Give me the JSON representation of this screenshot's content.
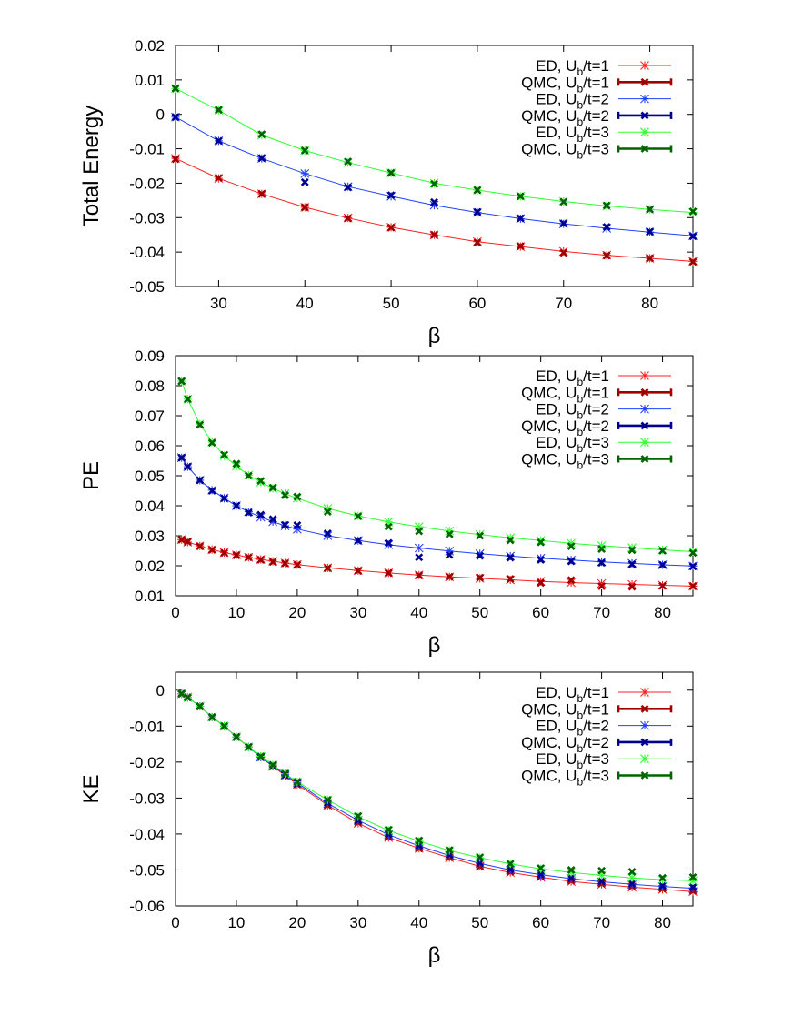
{
  "colors": {
    "ed_1": "#ff2020",
    "qmc_1": "#a00000",
    "ed_2": "#2040ff",
    "qmc_2": "#000090",
    "ed_3": "#30ff30",
    "qmc_3": "#006400"
  },
  "legend": [
    "ED, U_b/t=1",
    "QMC, U_b/t=1",
    "ED, U_b/t=2",
    "QMC, U_b/t=2",
    "ED, U_b/t=3",
    "QMC, U_b/t=3"
  ],
  "chart_data": [
    {
      "type": "line",
      "ylabel": "Total Energy",
      "xlabel": "β",
      "xlim": [
        25,
        85
      ],
      "ylim": [
        -0.05,
        0.02
      ],
      "xticks": [
        30,
        40,
        50,
        60,
        70,
        80
      ],
      "yticks": [
        0.02,
        0.01,
        0,
        -0.01,
        -0.02,
        -0.03,
        -0.04,
        -0.05
      ],
      "ytick_labels": [
        "0.02",
        "0.01",
        "0",
        "-0.01",
        "-0.02",
        "-0.03",
        "-0.04",
        "-0.05"
      ],
      "legend_position": "top-right",
      "series": [
        {
          "name": "ED, U_b/t=1",
          "kind": "ed",
          "x": [
            25,
            30,
            35,
            40,
            45,
            50,
            55,
            60,
            65,
            70,
            75,
            80,
            85
          ],
          "y": [
            -0.0128,
            -0.0186,
            -0.0231,
            -0.027,
            -0.0301,
            -0.0328,
            -0.035,
            -0.037,
            -0.0384,
            -0.0398,
            -0.0409,
            -0.0418,
            -0.0427
          ]
        },
        {
          "name": "QMC, U_b/t=1",
          "kind": "qmc",
          "x": [
            25,
            30,
            35,
            40,
            45,
            50,
            55,
            60,
            65,
            70,
            75,
            80,
            85
          ],
          "y": [
            -0.013,
            -0.0185,
            -0.0231,
            -0.027,
            -0.0302,
            -0.0329,
            -0.035,
            -0.0372,
            -0.0383,
            -0.0402,
            -0.041,
            -0.0418,
            -0.0428
          ]
        },
        {
          "name": "ED, U_b/t=2",
          "kind": "ed",
          "x": [
            25,
            30,
            35,
            40,
            45,
            50,
            55,
            60,
            65,
            70,
            75,
            80,
            85
          ],
          "y": [
            -0.0008,
            -0.0077,
            -0.0128,
            -0.0172,
            -0.021,
            -0.0238,
            -0.0264,
            -0.0285,
            -0.0303,
            -0.0318,
            -0.0331,
            -0.0342,
            -0.0353
          ]
        },
        {
          "name": "QMC, U_b/t=2",
          "kind": "qmc",
          "x": [
            25,
            30,
            35,
            40,
            45,
            50,
            55,
            60,
            65,
            70,
            75,
            80,
            85
          ],
          "y": [
            -0.0008,
            -0.0077,
            -0.0127,
            -0.0197,
            -0.0212,
            -0.0235,
            -0.0255,
            -0.0284,
            -0.0302,
            -0.0317,
            -0.0327,
            -0.0341,
            -0.0354
          ]
        },
        {
          "name": "ED, U_b/t=3",
          "kind": "ed",
          "x": [
            25,
            30,
            35,
            40,
            45,
            50,
            55,
            60,
            65,
            70,
            75,
            80,
            85
          ],
          "y": [
            0.0075,
            0.0012,
            -0.006,
            -0.0105,
            -0.014,
            -0.017,
            -0.02,
            -0.022,
            -0.0238,
            -0.0253,
            -0.0266,
            -0.0276,
            -0.0285
          ]
        },
        {
          "name": "QMC, U_b/t=3",
          "kind": "qmc",
          "x": [
            25,
            30,
            35,
            40,
            45,
            50,
            55,
            60,
            65,
            70,
            75,
            80,
            85
          ],
          "y": [
            0.0075,
            0.0013,
            -0.0058,
            -0.0105,
            -0.0137,
            -0.017,
            -0.0202,
            -0.022,
            -0.0238,
            -0.0254,
            -0.0265,
            -0.0276,
            -0.0282
          ]
        }
      ]
    },
    {
      "type": "line",
      "ylabel": "PE",
      "xlabel": "β",
      "xlim": [
        0,
        85
      ],
      "ylim": [
        0.01,
        0.09
      ],
      "xticks": [
        0,
        10,
        20,
        30,
        40,
        50,
        60,
        70,
        80
      ],
      "yticks": [
        0.09,
        0.08,
        0.07,
        0.06,
        0.05,
        0.04,
        0.03,
        0.02,
        0.01
      ],
      "ytick_labels": [
        "0.09",
        "0.08",
        "0.07",
        "0.06",
        "0.05",
        "0.04",
        "0.03",
        "0.02",
        "0.01"
      ],
      "legend_position": "top-right",
      "series": [
        {
          "name": "ED, U_b/t=1",
          "kind": "ed",
          "x": [
            1,
            2,
            4,
            6,
            8,
            10,
            12,
            14,
            16,
            18,
            20,
            25,
            30,
            35,
            40,
            45,
            50,
            55,
            60,
            65,
            70,
            75,
            80,
            85
          ],
          "y": [
            0.0287,
            0.0279,
            0.0266,
            0.0254,
            0.0244,
            0.0236,
            0.0228,
            0.0221,
            0.0215,
            0.0209,
            0.0204,
            0.0193,
            0.0184,
            0.0176,
            0.0169,
            0.0163,
            0.0158,
            0.0153,
            0.0148,
            0.0144,
            0.0141,
            0.0138,
            0.0135,
            0.0132
          ]
        },
        {
          "name": "QMC, U_b/t=1",
          "kind": "qmc",
          "x": [
            1,
            2,
            4,
            6,
            8,
            10,
            12,
            14,
            16,
            18,
            20,
            25,
            30,
            35,
            40,
            45,
            50,
            55,
            60,
            65,
            70,
            75,
            80,
            85
          ],
          "y": [
            0.0287,
            0.028,
            0.0265,
            0.0253,
            0.0243,
            0.0235,
            0.0228,
            0.022,
            0.0213,
            0.0208,
            0.0203,
            0.0192,
            0.0183,
            0.0176,
            0.0168,
            0.0163,
            0.016,
            0.0156,
            0.0143,
            0.0152,
            0.0132,
            0.013,
            0.0133,
            0.0132
          ]
        },
        {
          "name": "ED, U_b/t=2",
          "kind": "ed",
          "x": [
            1,
            2,
            4,
            6,
            8,
            10,
            12,
            14,
            16,
            18,
            20,
            25,
            30,
            35,
            40,
            45,
            50,
            55,
            60,
            65,
            70,
            75,
            80,
            85
          ],
          "y": [
            0.056,
            0.053,
            0.0485,
            0.0452,
            0.0425,
            0.04,
            0.038,
            0.0362,
            0.0347,
            0.0333,
            0.0322,
            0.03,
            0.0284,
            0.027,
            0.0259,
            0.0249,
            0.024,
            0.0232,
            0.0225,
            0.0219,
            0.0213,
            0.0208,
            0.0203,
            0.0199
          ]
        },
        {
          "name": "QMC, U_b/t=2",
          "kind": "qmc",
          "x": [
            1,
            2,
            4,
            6,
            8,
            10,
            12,
            14,
            16,
            18,
            20,
            25,
            30,
            35,
            40,
            45,
            50,
            55,
            60,
            65,
            70,
            75,
            80,
            85
          ],
          "y": [
            0.056,
            0.053,
            0.0485,
            0.045,
            0.0425,
            0.04,
            0.0377,
            0.037,
            0.0355,
            0.0336,
            0.0335,
            0.0308,
            0.0284,
            0.0276,
            0.0228,
            0.0236,
            0.0233,
            0.0227,
            0.022,
            0.0215,
            0.021,
            0.0205,
            0.0203,
            0.0198
          ]
        },
        {
          "name": "ED, U_b/t=3",
          "kind": "ed",
          "x": [
            1,
            2,
            4,
            6,
            8,
            10,
            12,
            14,
            16,
            18,
            20,
            25,
            30,
            35,
            40,
            45,
            50,
            55,
            60,
            65,
            70,
            75,
            80,
            85
          ],
          "y": [
            0.0815,
            0.0755,
            0.0672,
            0.0612,
            0.0567,
            0.0532,
            0.0502,
            0.0479,
            0.0458,
            0.044,
            0.0425,
            0.0391,
            0.0366,
            0.0346,
            0.033,
            0.0316,
            0.0304,
            0.0293,
            0.0284,
            0.0275,
            0.0267,
            0.026,
            0.0253,
            0.0247
          ]
        },
        {
          "name": "QMC, U_b/t=3",
          "kind": "qmc",
          "x": [
            1,
            2,
            4,
            6,
            8,
            10,
            12,
            14,
            16,
            18,
            20,
            25,
            30,
            35,
            40,
            45,
            50,
            55,
            60,
            65,
            70,
            75,
            80,
            85
          ],
          "y": [
            0.0815,
            0.0755,
            0.067,
            0.061,
            0.057,
            0.054,
            0.05,
            0.0483,
            0.046,
            0.0435,
            0.043,
            0.038,
            0.0365,
            0.033,
            0.0315,
            0.0305,
            0.03,
            0.0285,
            0.0278,
            0.0265,
            0.0256,
            0.0252,
            0.025,
            0.0243
          ]
        }
      ]
    },
    {
      "type": "line",
      "ylabel": "KE",
      "xlabel": "β",
      "xlim": [
        0,
        85
      ],
      "ylim": [
        -0.06,
        0.005
      ],
      "xticks": [
        0,
        10,
        20,
        30,
        40,
        50,
        60,
        70,
        80
      ],
      "yticks": [
        0,
        -0.01,
        -0.02,
        -0.03,
        -0.04,
        -0.05,
        -0.06
      ],
      "ytick_labels": [
        "0",
        "-0.01",
        "-0.02",
        "-0.03",
        "-0.04",
        "-0.05",
        "-0.06"
      ],
      "legend_position": "top-right",
      "series": [
        {
          "name": "ED, U_b/t=1",
          "kind": "ed",
          "x": [
            1,
            2,
            4,
            6,
            8,
            10,
            12,
            14,
            16,
            18,
            20,
            25,
            30,
            35,
            40,
            45,
            50,
            55,
            60,
            65,
            70,
            75,
            80,
            85
          ],
          "y": [
            -0.001,
            -0.002,
            -0.0045,
            -0.0075,
            -0.01,
            -0.013,
            -0.0158,
            -0.0186,
            -0.0212,
            -0.0237,
            -0.0262,
            -0.032,
            -0.037,
            -0.041,
            -0.044,
            -0.0466,
            -0.049,
            -0.0507,
            -0.052,
            -0.0532,
            -0.054,
            -0.0548,
            -0.0554,
            -0.056
          ]
        },
        {
          "name": "QMC, U_b/t=1",
          "kind": "qmc",
          "x": [
            1,
            2,
            4,
            6,
            8,
            10,
            12,
            14,
            16,
            18,
            20,
            25,
            30,
            35,
            40,
            45,
            50,
            55,
            60,
            65,
            70,
            75,
            80,
            85
          ],
          "y": [
            -0.001,
            -0.002,
            -0.0045,
            -0.0075,
            -0.01,
            -0.013,
            -0.0158,
            -0.0186,
            -0.0212,
            -0.0237,
            -0.0262,
            -0.032,
            -0.0368,
            -0.0408,
            -0.044,
            -0.0465,
            -0.049,
            -0.0505,
            -0.0518,
            -0.053,
            -0.0538,
            -0.0545,
            -0.0552,
            -0.0558
          ]
        },
        {
          "name": "ED, U_b/t=2",
          "kind": "ed",
          "x": [
            1,
            2,
            4,
            6,
            8,
            10,
            12,
            14,
            16,
            18,
            20,
            25,
            30,
            35,
            40,
            45,
            50,
            55,
            60,
            65,
            70,
            75,
            80,
            85
          ],
          "y": [
            -0.001,
            -0.002,
            -0.0045,
            -0.0075,
            -0.01,
            -0.013,
            -0.0158,
            -0.0186,
            -0.021,
            -0.0235,
            -0.0258,
            -0.0315,
            -0.0362,
            -0.0402,
            -0.0433,
            -0.046,
            -0.0482,
            -0.05,
            -0.0513,
            -0.0524,
            -0.0533,
            -0.054,
            -0.0546,
            -0.0551
          ]
        },
        {
          "name": "QMC, U_b/t=2",
          "kind": "qmc",
          "x": [
            1,
            2,
            4,
            6,
            8,
            10,
            12,
            14,
            16,
            18,
            20,
            25,
            30,
            35,
            40,
            45,
            50,
            55,
            60,
            65,
            70,
            75,
            80,
            85
          ],
          "y": [
            -0.001,
            -0.002,
            -0.0045,
            -0.0075,
            -0.01,
            -0.013,
            -0.0158,
            -0.0186,
            -0.021,
            -0.0235,
            -0.0258,
            -0.0313,
            -0.0362,
            -0.04,
            -0.0432,
            -0.0458,
            -0.048,
            -0.0498,
            -0.0512,
            -0.0522,
            -0.0531,
            -0.0538,
            -0.0544,
            -0.0548
          ]
        },
        {
          "name": "ED, U_b/t=3",
          "kind": "ed",
          "x": [
            1,
            2,
            4,
            6,
            8,
            10,
            12,
            14,
            16,
            18,
            20,
            25,
            30,
            35,
            40,
            45,
            50,
            55,
            60,
            65,
            70,
            75,
            80,
            85
          ],
          "y": [
            -0.001,
            -0.002,
            -0.0045,
            -0.0075,
            -0.01,
            -0.013,
            -0.0158,
            -0.0184,
            -0.0208,
            -0.0232,
            -0.0255,
            -0.0305,
            -0.0352,
            -0.039,
            -0.042,
            -0.0446,
            -0.0466,
            -0.0483,
            -0.0497,
            -0.0507,
            -0.0515,
            -0.0522,
            -0.0527,
            -0.053
          ]
        },
        {
          "name": "QMC, U_b/t=3",
          "kind": "qmc",
          "x": [
            1,
            2,
            4,
            6,
            8,
            10,
            12,
            14,
            16,
            18,
            20,
            25,
            30,
            35,
            40,
            45,
            50,
            55,
            60,
            65,
            70,
            75,
            80,
            85
          ],
          "y": [
            -0.001,
            -0.002,
            -0.0045,
            -0.0075,
            -0.01,
            -0.013,
            -0.0158,
            -0.0184,
            -0.0208,
            -0.0232,
            -0.0255,
            -0.0305,
            -0.035,
            -0.0388,
            -0.0418,
            -0.0445,
            -0.0465,
            -0.0483,
            -0.0495,
            -0.05,
            -0.0502,
            -0.0505,
            -0.0522,
            -0.052
          ]
        }
      ]
    }
  ]
}
